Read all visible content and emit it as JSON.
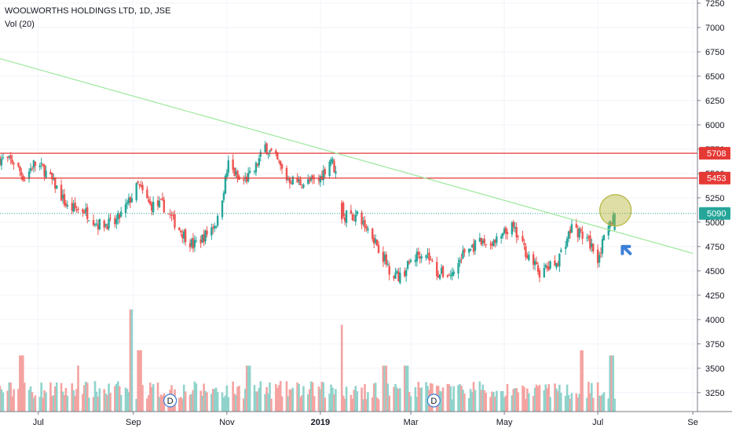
{
  "header": {
    "symbol_line": "WOOLWORTHS HOLDINGS LTD, 1D, JSE",
    "vol_label": "Vol (20)"
  },
  "colors": {
    "up": "#26a69a",
    "down": "#ef5350",
    "vol_up": "#8fd3cb",
    "vol_down": "#f4a3a1",
    "trendline": "#9be89b",
    "level": "#e53935",
    "current": "#26a69a",
    "marker_circle": "#b5b53a",
    "arrow": "#3d7fd6"
  },
  "chart_data": {
    "type": "candlestick",
    "title": "WOOLWORTHS HOLDINGS LTD, 1D, JSE",
    "y_axis": {
      "side": "right",
      "ylim": [
        3200,
        7250
      ],
      "ticks": [
        7250,
        7000,
        6750,
        6500,
        6250,
        6000,
        5750,
        5500,
        5250,
        5000,
        4750,
        4500,
        4250,
        4000,
        3750,
        3500,
        3250
      ]
    },
    "x_axis": {
      "range": [
        "2018-06-06",
        "2019-09-04"
      ],
      "ticks": [
        {
          "date": "2018-07-01",
          "label": "Jul"
        },
        {
          "date": "2018-09-01",
          "label": "Sep"
        },
        {
          "date": "2018-11-01",
          "label": "Nov"
        },
        {
          "date": "2019-01-01",
          "label": "2019"
        },
        {
          "date": "2019-03-01",
          "label": "Mar"
        },
        {
          "date": "2019-05-01",
          "label": "May"
        },
        {
          "date": "2019-07-01",
          "label": "Jul"
        },
        {
          "date": "2019-09-01",
          "label": "Se"
        }
      ]
    },
    "horizontal_levels": [
      {
        "value": 5708,
        "label": "5708"
      },
      {
        "value": 5453,
        "label": "5453"
      }
    ],
    "current_price": {
      "value": 5090,
      "label": "5090"
    },
    "trendline": [
      {
        "date": "2018-06-06",
        "value": 6680
      },
      {
        "date": "2019-09-01",
        "value": 4680
      }
    ],
    "price_path": [
      {
        "date": "2018-06-06",
        "value": 5650
      },
      {
        "date": "2018-06-15",
        "value": 5620
      },
      {
        "date": "2018-06-22",
        "value": 5450
      },
      {
        "date": "2018-06-28",
        "value": 5600
      },
      {
        "date": "2018-07-04",
        "value": 5550
      },
      {
        "date": "2018-07-12",
        "value": 5380
      },
      {
        "date": "2018-07-20",
        "value": 5150
      },
      {
        "date": "2018-07-31",
        "value": 5120
      },
      {
        "date": "2018-08-09",
        "value": 4980
      },
      {
        "date": "2018-08-20",
        "value": 4990
      },
      {
        "date": "2018-08-27",
        "value": 5150
      },
      {
        "date": "2018-09-04",
        "value": 5380
      },
      {
        "date": "2018-09-12",
        "value": 5170
      },
      {
        "date": "2018-09-20",
        "value": 5180
      },
      {
        "date": "2018-09-30",
        "value": 4950
      },
      {
        "date": "2018-10-10",
        "value": 4760
      },
      {
        "date": "2018-10-17",
        "value": 4850
      },
      {
        "date": "2018-10-26",
        "value": 5020
      },
      {
        "date": "2018-11-02",
        "value": 5600
      },
      {
        "date": "2018-11-10",
        "value": 5400
      },
      {
        "date": "2018-11-18",
        "value": 5500
      },
      {
        "date": "2018-11-26",
        "value": 5780
      },
      {
        "date": "2018-12-03",
        "value": 5650
      },
      {
        "date": "2018-12-10",
        "value": 5450
      },
      {
        "date": "2018-12-20",
        "value": 5400
      },
      {
        "date": "2018-12-31",
        "value": 5430
      },
      {
        "date": "2019-01-08",
        "value": 5660
      },
      {
        "date": "2019-01-12",
        "value": 5450
      },
      {
        "date": "2019-01-15",
        "value": 5070
      },
      {
        "date": "2019-01-25",
        "value": 5060
      },
      {
        "date": "2019-02-04",
        "value": 4870
      },
      {
        "date": "2019-02-15",
        "value": 4520
      },
      {
        "date": "2019-02-22",
        "value": 4430
      },
      {
        "date": "2019-03-02",
        "value": 4620
      },
      {
        "date": "2019-03-10",
        "value": 4720
      },
      {
        "date": "2019-03-18",
        "value": 4480
      },
      {
        "date": "2019-03-28",
        "value": 4460
      },
      {
        "date": "2019-04-05",
        "value": 4700
      },
      {
        "date": "2019-04-15",
        "value": 4780
      },
      {
        "date": "2019-04-25",
        "value": 4790
      },
      {
        "date": "2019-05-06",
        "value": 4950
      },
      {
        "date": "2019-05-15",
        "value": 4700
      },
      {
        "date": "2019-05-24",
        "value": 4480
      },
      {
        "date": "2019-06-04",
        "value": 4580
      },
      {
        "date": "2019-06-14",
        "value": 4950
      },
      {
        "date": "2019-06-24",
        "value": 4830
      },
      {
        "date": "2019-07-01",
        "value": 4640
      },
      {
        "date": "2019-07-07",
        "value": 4900
      },
      {
        "date": "2019-07-12",
        "value": 5090
      }
    ],
    "volume_peaks": [
      {
        "date": "2018-06-20",
        "value": 0.55
      },
      {
        "date": "2018-07-28",
        "value": 0.45
      },
      {
        "date": "2018-08-31",
        "value": 1.0
      },
      {
        "date": "2018-09-05",
        "value": 0.6
      },
      {
        "date": "2018-11-15",
        "value": 0.45
      },
      {
        "date": "2019-01-14",
        "value": 0.85
      },
      {
        "date": "2019-02-12",
        "value": 0.45
      },
      {
        "date": "2019-02-26",
        "value": 0.45
      },
      {
        "date": "2019-06-21",
        "value": 0.6
      },
      {
        "date": "2019-07-10",
        "value": 0.55
      }
    ],
    "dividend_markers": [
      {
        "date": "2018-09-25",
        "label": "D"
      },
      {
        "date": "2019-03-16",
        "label": "D"
      }
    ],
    "annotations": [
      {
        "type": "circle",
        "date": "2019-07-11",
        "value": 5090
      },
      {
        "type": "arrow",
        "date": "2019-07-16",
        "value": 4750
      }
    ]
  }
}
